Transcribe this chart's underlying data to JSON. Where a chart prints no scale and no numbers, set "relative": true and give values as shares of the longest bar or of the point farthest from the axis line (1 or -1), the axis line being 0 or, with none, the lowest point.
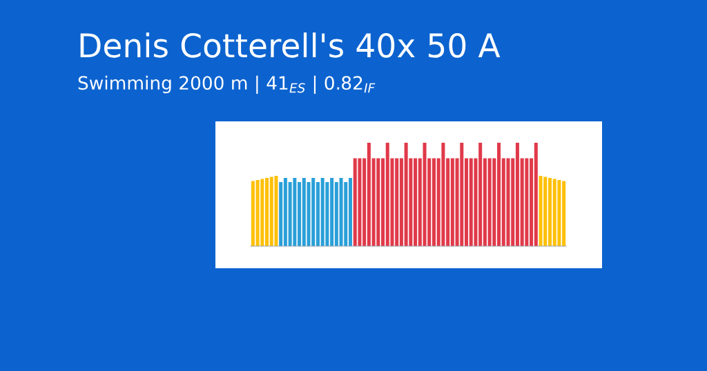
{
  "chart_data": {
    "type": "bar",
    "title": "Denis Cotterell's 40x 50 A",
    "subtitle": "Swimming 2000 m | 41$_{ES}$ | 0.82$_{IF}$",
    "relative": true,
    "categories": [
      null,
      null,
      null,
      null,
      null,
      null,
      null,
      null,
      null,
      null,
      null,
      null,
      null,
      null,
      null,
      null,
      null,
      null,
      null,
      null,
      null,
      null,
      null,
      null,
      null,
      null,
      null,
      null,
      null,
      null,
      null,
      null,
      null,
      null,
      null,
      null,
      null,
      null,
      null,
      null,
      null,
      null,
      null,
      null,
      null,
      null,
      null,
      null,
      null,
      null,
      null,
      null,
      null,
      null,
      null,
      null,
      null,
      null,
      null,
      null,
      null,
      null,
      null,
      null,
      null,
      null,
      null,
      null
    ],
    "values": [
      0.63,
      0.64,
      0.65,
      0.66,
      0.67,
      0.68,
      0.62,
      0.66,
      0.62,
      0.66,
      0.62,
      0.66,
      0.62,
      0.66,
      0.62,
      0.66,
      0.62,
      0.66,
      0.62,
      0.66,
      0.62,
      0.66,
      0.85,
      0.85,
      0.85,
      1,
      0.85,
      0.85,
      0.85,
      1,
      0.85,
      0.85,
      0.85,
      1,
      0.85,
      0.85,
      0.85,
      1,
      0.85,
      0.85,
      0.85,
      1,
      0.85,
      0.85,
      0.85,
      1,
      0.85,
      0.85,
      0.85,
      1,
      0.85,
      0.85,
      0.85,
      1,
      0.85,
      0.85,
      0.85,
      1,
      0.85,
      0.85,
      0.85,
      1,
      0.68,
      0.67,
      0.66,
      0.65,
      0.64,
      0.63
    ],
    "colors": [
      "#fec009",
      "#fec009",
      "#fec009",
      "#fec009",
      "#fec009",
      "#fec009",
      "#2a9fd8",
      "#2a9fd8",
      "#2a9fd8",
      "#2a9fd8",
      "#2a9fd8",
      "#2a9fd8",
      "#2a9fd8",
      "#2a9fd8",
      "#2a9fd8",
      "#2a9fd8",
      "#2a9fd8",
      "#2a9fd8",
      "#2a9fd8",
      "#2a9fd8",
      "#2a9fd8",
      "#2a9fd8",
      "#e03a4a",
      "#e03a4a",
      "#e03a4a",
      "#e03a4a",
      "#e03a4a",
      "#e03a4a",
      "#e03a4a",
      "#e03a4a",
      "#e03a4a",
      "#e03a4a",
      "#e03a4a",
      "#e03a4a",
      "#e03a4a",
      "#e03a4a",
      "#e03a4a",
      "#e03a4a",
      "#e03a4a",
      "#e03a4a",
      "#e03a4a",
      "#e03a4a",
      "#e03a4a",
      "#e03a4a",
      "#e03a4a",
      "#e03a4a",
      "#e03a4a",
      "#e03a4a",
      "#e03a4a",
      "#e03a4a",
      "#e03a4a",
      "#e03a4a",
      "#e03a4a",
      "#e03a4a",
      "#e03a4a",
      "#e03a4a",
      "#e03a4a",
      "#e03a4a",
      "#e03a4a",
      "#e03a4a",
      "#e03a4a",
      "#e03a4a",
      "#fec009",
      "#fec009",
      "#fec009",
      "#fec009",
      "#fec009",
      "#fec009"
    ]
  }
}
